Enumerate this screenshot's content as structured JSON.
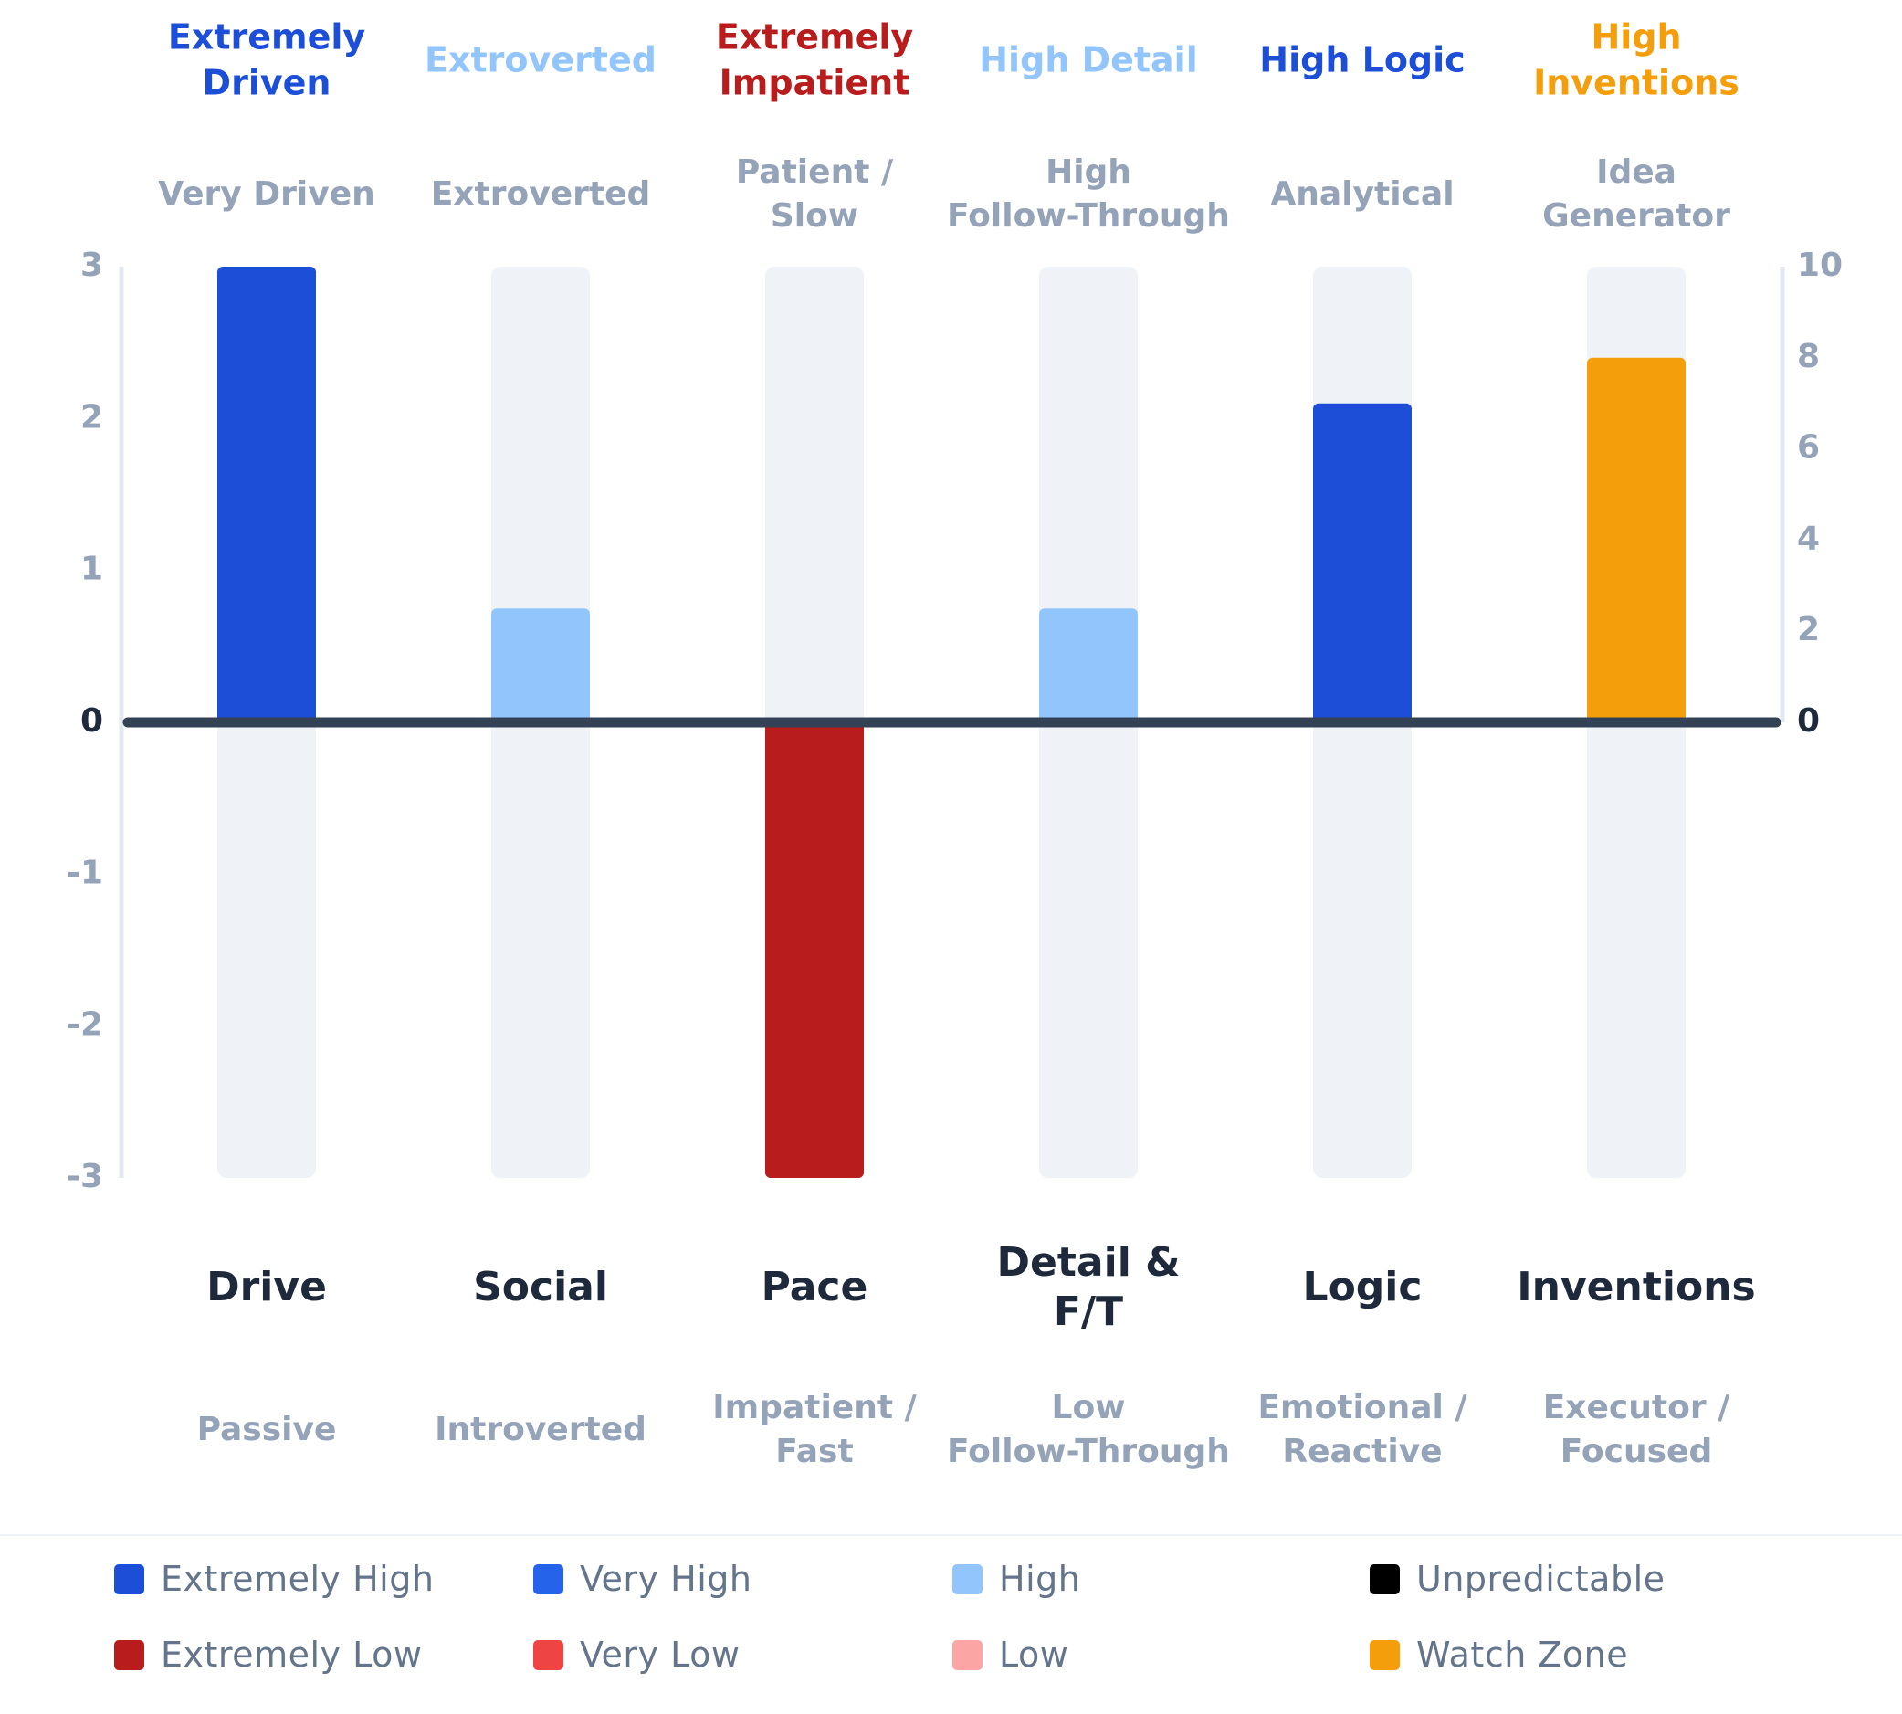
{
  "chart_data": {
    "type": "bar",
    "categories": [
      "Drive",
      "Social",
      "Pace",
      "Detail &\nF/T",
      "Logic",
      "Inventions"
    ],
    "values": [
      3,
      0.75,
      -3,
      0.75,
      2.1,
      2.4
    ],
    "bar_colors": [
      "#1d4ed8",
      "#93c5fd",
      "#b91c1c",
      "#93c5fd",
      "#1d4ed8",
      "#f59e0b"
    ],
    "ylim": [
      -3,
      3
    ],
    "yticks_left": [
      "3",
      "2",
      "1",
      "0",
      "-1",
      "-2",
      "-3"
    ],
    "yticks_right": [
      "10",
      "8",
      "6",
      "4",
      "2",
      "0"
    ],
    "top_labels": [
      {
        "text": "Extremely\nDriven",
        "color": "#1d4ed8"
      },
      {
        "text": "Extroverted",
        "color": "#93c5fd"
      },
      {
        "text": "Extremely\nImpatient",
        "color": "#b91c1c"
      },
      {
        "text": "High Detail",
        "color": "#93c5fd"
      },
      {
        "text": "High Logic",
        "color": "#1d4ed8"
      },
      {
        "text": "High\nInventions",
        "color": "#f59e0b"
      }
    ],
    "high_pole_labels": [
      "Very Driven",
      "Extroverted",
      "Patient /\nSlow",
      "High\nFollow-Through",
      "Analytical",
      "Idea\nGenerator"
    ],
    "low_pole_labels": [
      "Passive",
      "Introverted",
      "Impatient /\nFast",
      "Low\nFollow-Through",
      "Emotional /\nReactive",
      "Executor /\nFocused"
    ]
  },
  "legend": [
    {
      "label": "Extremely High",
      "color": "#1d4ed8"
    },
    {
      "label": "Very High",
      "color": "#2563eb"
    },
    {
      "label": "High",
      "color": "#93c5fd"
    },
    {
      "label": "Unpredictable",
      "color": "#000000"
    },
    {
      "label": "Extremely Low",
      "color": "#b91c1c"
    },
    {
      "label": "Very Low",
      "color": "#ef4444"
    },
    {
      "label": "Low",
      "color": "#fca5a5"
    },
    {
      "label": "Watch Zone",
      "color": "#f59e0b"
    }
  ],
  "colors": {
    "track": "#eff3f8",
    "zero_line": "#334155",
    "axis_text": "#94a3b8",
    "category_text": "#1e293b"
  }
}
